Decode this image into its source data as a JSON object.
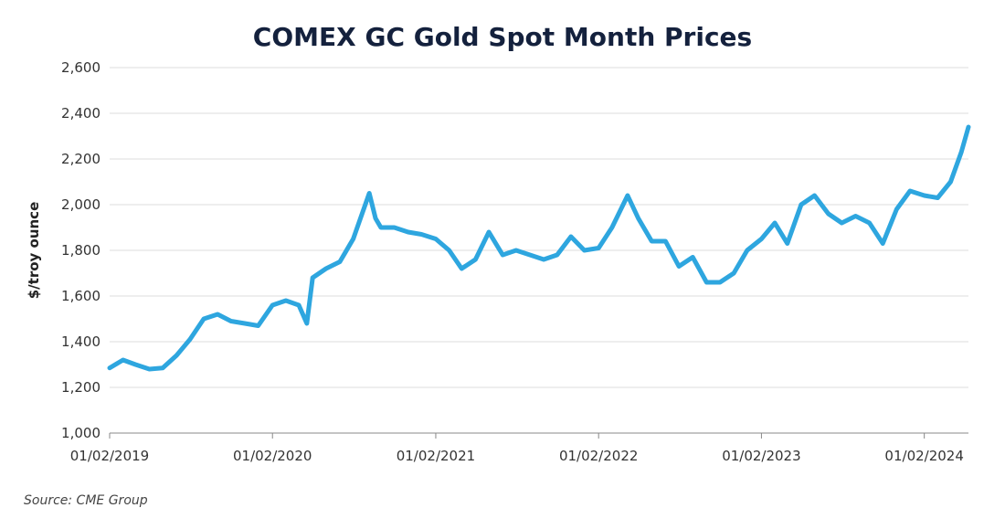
{
  "chart_data": {
    "type": "line",
    "title": "COMEX GC Gold Spot Month Prices",
    "y_label": "$/troy ounce",
    "source": "Source: CME Group",
    "x": [
      "01/02/2019",
      "02/01/2019",
      "03/01/2019",
      "04/01/2019",
      "05/01/2019",
      "06/01/2019",
      "07/01/2019",
      "08/01/2019",
      "09/01/2019",
      "10/01/2019",
      "11/01/2019",
      "12/01/2019",
      "01/02/2020",
      "02/01/2020",
      "03/01/2020",
      "03/19/2020",
      "04/01/2020",
      "05/01/2020",
      "06/01/2020",
      "07/01/2020",
      "08/06/2020",
      "08/20/2020",
      "09/01/2020",
      "10/01/2020",
      "11/01/2020",
      "12/01/2020",
      "01/02/2021",
      "02/01/2021",
      "03/01/2021",
      "04/01/2021",
      "05/01/2021",
      "06/01/2021",
      "07/01/2021",
      "08/01/2021",
      "09/01/2021",
      "10/01/2021",
      "11/01/2021",
      "12/01/2021",
      "01/02/2022",
      "02/01/2022",
      "03/08/2022",
      "04/01/2022",
      "05/01/2022",
      "06/01/2022",
      "07/01/2022",
      "08/01/2022",
      "09/01/2022",
      "10/01/2022",
      "11/01/2022",
      "12/01/2022",
      "01/02/2023",
      "02/01/2023",
      "03/01/2023",
      "04/01/2023",
      "05/01/2023",
      "06/01/2023",
      "07/01/2023",
      "08/01/2023",
      "09/01/2023",
      "10/01/2023",
      "11/01/2023",
      "12/01/2023",
      "01/02/2024",
      "02/01/2024",
      "03/01/2024",
      "03/25/2024",
      "04/10/2024"
    ],
    "series": [
      {
        "name": "Gold spot month",
        "color": "#2ea6df",
        "values": [
          1285,
          1320,
          1300,
          1280,
          1285,
          1340,
          1410,
          1500,
          1520,
          1490,
          1480,
          1470,
          1560,
          1580,
          1560,
          1480,
          1680,
          1720,
          1750,
          1850,
          2050,
          1940,
          1900,
          1900,
          1880,
          1870,
          1850,
          1800,
          1720,
          1760,
          1880,
          1780,
          1800,
          1780,
          1760,
          1780,
          1860,
          1800,
          1810,
          1900,
          2040,
          1940,
          1840,
          1840,
          1730,
          1770,
          1660,
          1660,
          1700,
          1800,
          1850,
          1920,
          1830,
          2000,
          2040,
          1960,
          1920,
          1950,
          1920,
          1830,
          1980,
          2060,
          2040,
          2030,
          2100,
          2230,
          2340
        ]
      }
    ],
    "xlim": [
      "01/02/2019",
      "04/10/2024"
    ],
    "xticks": [
      "01/02/2019",
      "01/02/2020",
      "01/02/2021",
      "01/02/2022",
      "01/02/2023",
      "01/02/2024"
    ],
    "ylim": [
      1000,
      2600
    ],
    "yticks": [
      {
        "value": 1000,
        "label": "1,000"
      },
      {
        "value": 1200,
        "label": "1,200"
      },
      {
        "value": 1400,
        "label": "1,400"
      },
      {
        "value": 1600,
        "label": "1,600"
      },
      {
        "value": 1800,
        "label": "1,800"
      },
      {
        "value": 2000,
        "label": "2,000"
      },
      {
        "value": 2200,
        "label": "2,200"
      },
      {
        "value": 2400,
        "label": "2,400"
      },
      {
        "value": 2600,
        "label": "2,600"
      }
    ],
    "grid": true
  }
}
